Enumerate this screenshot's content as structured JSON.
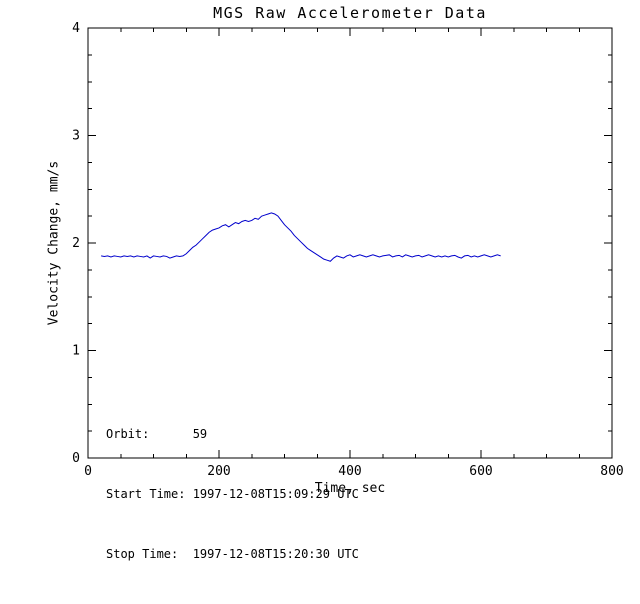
{
  "colors": {
    "background": "#ffffff",
    "axis": "#000000",
    "text": "#000000",
    "line": "#0000cc"
  },
  "chart_data": {
    "type": "line",
    "title": "MGS Raw Accelerometer Data",
    "xlabel": "Time, sec",
    "ylabel": "Velocity Change, mm/s",
    "xlim": [
      0,
      800
    ],
    "ylim": [
      0,
      4
    ],
    "x_ticks": [
      0,
      200,
      400,
      600,
      800
    ],
    "y_ticks": [
      0,
      1,
      2,
      3,
      4
    ],
    "x_minor_per_major": 4,
    "y_minor_per_major": 4,
    "grid": false,
    "legend": "none",
    "line_color": "#0000cc",
    "axis_color": "#000000",
    "annotations": [
      {
        "id": "orbit",
        "text": "Orbit:      59"
      },
      {
        "id": "start-time",
        "text": "Start Time: 1997-12-08T15:09:29 UTC"
      },
      {
        "id": "stop-time",
        "text": "Stop Time:  1997-12-08T15:20:30 UTC"
      }
    ],
    "series": [
      {
        "name": "velocity-change",
        "points": [
          [
            20,
            1.88
          ],
          [
            25,
            1.875
          ],
          [
            30,
            1.88
          ],
          [
            35,
            1.87
          ],
          [
            40,
            1.88
          ],
          [
            45,
            1.875
          ],
          [
            50,
            1.87
          ],
          [
            55,
            1.88
          ],
          [
            60,
            1.875
          ],
          [
            65,
            1.88
          ],
          [
            70,
            1.87
          ],
          [
            75,
            1.88
          ],
          [
            80,
            1.875
          ],
          [
            85,
            1.87
          ],
          [
            90,
            1.88
          ],
          [
            95,
            1.86
          ],
          [
            100,
            1.88
          ],
          [
            105,
            1.875
          ],
          [
            110,
            1.87
          ],
          [
            115,
            1.88
          ],
          [
            120,
            1.875
          ],
          [
            125,
            1.86
          ],
          [
            130,
            1.87
          ],
          [
            135,
            1.88
          ],
          [
            140,
            1.875
          ],
          [
            145,
            1.88
          ],
          [
            150,
            1.9
          ],
          [
            155,
            1.93
          ],
          [
            160,
            1.96
          ],
          [
            165,
            1.98
          ],
          [
            170,
            2.01
          ],
          [
            175,
            2.04
          ],
          [
            180,
            2.07
          ],
          [
            185,
            2.1
          ],
          [
            190,
            2.12
          ],
          [
            195,
            2.13
          ],
          [
            200,
            2.14
          ],
          [
            205,
            2.16
          ],
          [
            210,
            2.17
          ],
          [
            215,
            2.15
          ],
          [
            220,
            2.17
          ],
          [
            225,
            2.19
          ],
          [
            230,
            2.18
          ],
          [
            235,
            2.2
          ],
          [
            240,
            2.21
          ],
          [
            245,
            2.2
          ],
          [
            250,
            2.21
          ],
          [
            255,
            2.23
          ],
          [
            260,
            2.22
          ],
          [
            265,
            2.25
          ],
          [
            270,
            2.26
          ],
          [
            275,
            2.27
          ],
          [
            280,
            2.28
          ],
          [
            285,
            2.27
          ],
          [
            290,
            2.25
          ],
          [
            295,
            2.21
          ],
          [
            300,
            2.17
          ],
          [
            305,
            2.14
          ],
          [
            310,
            2.11
          ],
          [
            315,
            2.07
          ],
          [
            320,
            2.04
          ],
          [
            325,
            2.01
          ],
          [
            330,
            1.98
          ],
          [
            335,
            1.95
          ],
          [
            340,
            1.93
          ],
          [
            345,
            1.91
          ],
          [
            350,
            1.89
          ],
          [
            355,
            1.87
          ],
          [
            360,
            1.85
          ],
          [
            365,
            1.84
          ],
          [
            370,
            1.83
          ],
          [
            375,
            1.86
          ],
          [
            380,
            1.88
          ],
          [
            385,
            1.87
          ],
          [
            390,
            1.86
          ],
          [
            395,
            1.88
          ],
          [
            400,
            1.89
          ],
          [
            405,
            1.87
          ],
          [
            410,
            1.88
          ],
          [
            415,
            1.89
          ],
          [
            420,
            1.88
          ],
          [
            425,
            1.87
          ],
          [
            430,
            1.88
          ],
          [
            435,
            1.89
          ],
          [
            440,
            1.88
          ],
          [
            445,
            1.87
          ],
          [
            450,
            1.88
          ],
          [
            455,
            1.885
          ],
          [
            460,
            1.89
          ],
          [
            465,
            1.87
          ],
          [
            470,
            1.88
          ],
          [
            475,
            1.885
          ],
          [
            480,
            1.87
          ],
          [
            485,
            1.89
          ],
          [
            490,
            1.88
          ],
          [
            495,
            1.87
          ],
          [
            500,
            1.88
          ],
          [
            505,
            1.885
          ],
          [
            510,
            1.87
          ],
          [
            515,
            1.88
          ],
          [
            520,
            1.89
          ],
          [
            525,
            1.88
          ],
          [
            530,
            1.87
          ],
          [
            535,
            1.88
          ],
          [
            540,
            1.87
          ],
          [
            545,
            1.88
          ],
          [
            550,
            1.87
          ],
          [
            555,
            1.88
          ],
          [
            560,
            1.885
          ],
          [
            565,
            1.87
          ],
          [
            570,
            1.86
          ],
          [
            575,
            1.88
          ],
          [
            580,
            1.885
          ],
          [
            585,
            1.87
          ],
          [
            590,
            1.88
          ],
          [
            595,
            1.87
          ],
          [
            600,
            1.88
          ],
          [
            605,
            1.89
          ],
          [
            610,
            1.88
          ],
          [
            615,
            1.87
          ],
          [
            620,
            1.88
          ],
          [
            625,
            1.89
          ],
          [
            630,
            1.88
          ]
        ]
      }
    ]
  }
}
